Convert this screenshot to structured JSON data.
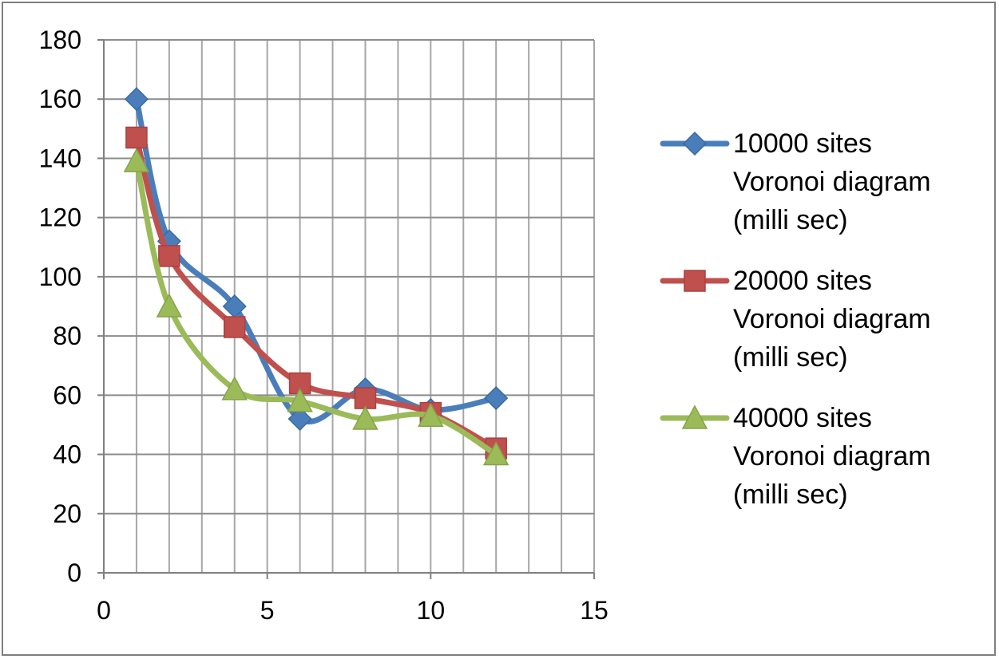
{
  "chart_data": {
    "type": "scatter",
    "title": "",
    "xlabel": "",
    "ylabel": "",
    "xlim": [
      0,
      15
    ],
    "ylim": [
      0,
      180
    ],
    "x_ticks": [
      0,
      5,
      10,
      15
    ],
    "y_ticks": [
      0,
      20,
      40,
      60,
      80,
      100,
      120,
      140,
      160,
      180
    ],
    "x_minor_gridlines_step": 1,
    "grid": true,
    "smooth_lines": true,
    "legend_position": "right",
    "series": [
      {
        "name": "10000 sites Voronoi diagram (milli sec)",
        "legend_lines": [
          "10000 sites",
          "Voronoi diagram",
          "(milli sec)"
        ],
        "color": "#4a7ebb",
        "marker": "diamond",
        "x": [
          1,
          2,
          4,
          6,
          8,
          10,
          12
        ],
        "y": [
          160,
          112,
          90,
          52,
          62,
          55,
          59
        ]
      },
      {
        "name": "20000 sites Voronoi diagram (milli sec)",
        "legend_lines": [
          "20000 sites",
          "Voronoi diagram",
          "(milli sec)"
        ],
        "color": "#c0504d",
        "marker": "square",
        "x": [
          1,
          2,
          4,
          6,
          8,
          10,
          12
        ],
        "y": [
          147,
          107,
          83,
          64,
          59,
          54,
          42
        ]
      },
      {
        "name": "40000 sites Voronoi diagram (milli sec)",
        "legend_lines": [
          "40000 sites",
          "Voronoi diagram",
          "(milli sec)"
        ],
        "color": "#9bbb59",
        "marker": "triangle",
        "x": [
          1,
          2,
          4,
          6,
          8,
          10,
          12
        ],
        "y": [
          139,
          90,
          62,
          58,
          52,
          53,
          40
        ]
      }
    ]
  }
}
